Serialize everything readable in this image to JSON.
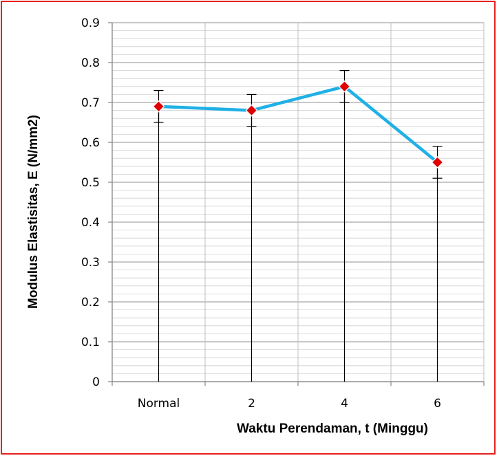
{
  "chart_data": {
    "type": "line",
    "title": "",
    "xlabel": "Waktu Perendaman, t (Minggu)",
    "ylabel": "Modulus Elastisitas, E (N/mm2)",
    "categories": [
      "Normal",
      "2",
      "4",
      "6"
    ],
    "series": [
      {
        "values": [
          0.69,
          0.68,
          0.74,
          0.55
        ],
        "error_plus": [
          0.04,
          0.04,
          0.04,
          0.04
        ],
        "error_minus": [
          0.04,
          0.04,
          0.04,
          0.04
        ],
        "line_color": "#1fb0e6",
        "marker_color": "#e00000",
        "marker": "diamond"
      }
    ],
    "ylim": [
      0,
      0.9
    ],
    "yticks": [
      "0",
      "0.1",
      "0.2",
      "0.3",
      "0.4",
      "0.5",
      "0.6",
      "0.7",
      "0.8",
      "0.9"
    ],
    "grid": true,
    "drop_lines": true,
    "legend": "none",
    "colors": {
      "frame": "#e8201e",
      "grid": "#bfbfbf",
      "axis": "#868686"
    }
  }
}
